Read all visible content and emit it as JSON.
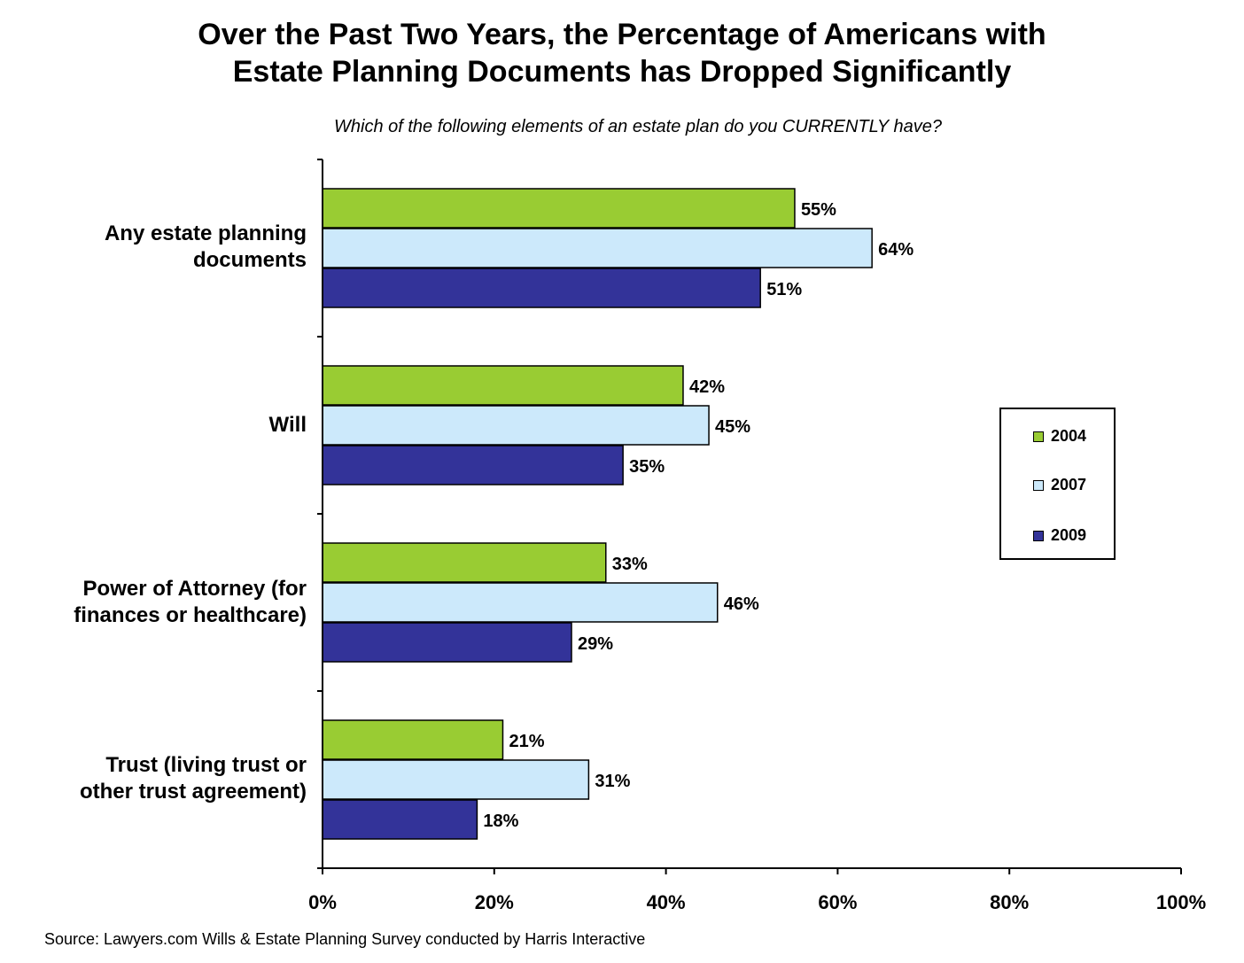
{
  "chart_data": {
    "type": "bar",
    "orientation": "horizontal",
    "title_lines": [
      "Over the Past Two Years, the Percentage of Americans with",
      "Estate Planning Documents has Dropped Significantly"
    ],
    "subtitle": "Which of the following elements of an estate plan do you CURRENTLY have?",
    "categories": [
      [
        "Any estate planning",
        "documents"
      ],
      [
        "Will"
      ],
      [
        "Power of Attorney (for",
        "finances or healthcare)"
      ],
      [
        "Trust (living trust or",
        "other trust agreement)"
      ]
    ],
    "series": [
      {
        "name": "2004",
        "color": "#99cc33",
        "values": [
          55,
          42,
          33,
          21
        ],
        "labels": [
          "55%",
          "42%",
          "33%",
          "21%"
        ]
      },
      {
        "name": "2007",
        "color": "#cce9fb",
        "values": [
          64,
          45,
          46,
          31
        ],
        "labels": [
          "64%",
          "45%",
          "46%",
          "31%"
        ]
      },
      {
        "name": "2009",
        "color": "#333399",
        "values": [
          51,
          35,
          29,
          18
        ],
        "labels": [
          "51%",
          "35%",
          "29%",
          "18%"
        ]
      }
    ],
    "xlim": [
      0,
      100
    ],
    "x_ticks": [
      "0%",
      "20%",
      "40%",
      "60%",
      "80%",
      "100%"
    ],
    "legend_position": "right",
    "grid": false
  },
  "source": "Source: Lawyers.com Wills & Estate Planning Survey conducted by Harris Interactive"
}
